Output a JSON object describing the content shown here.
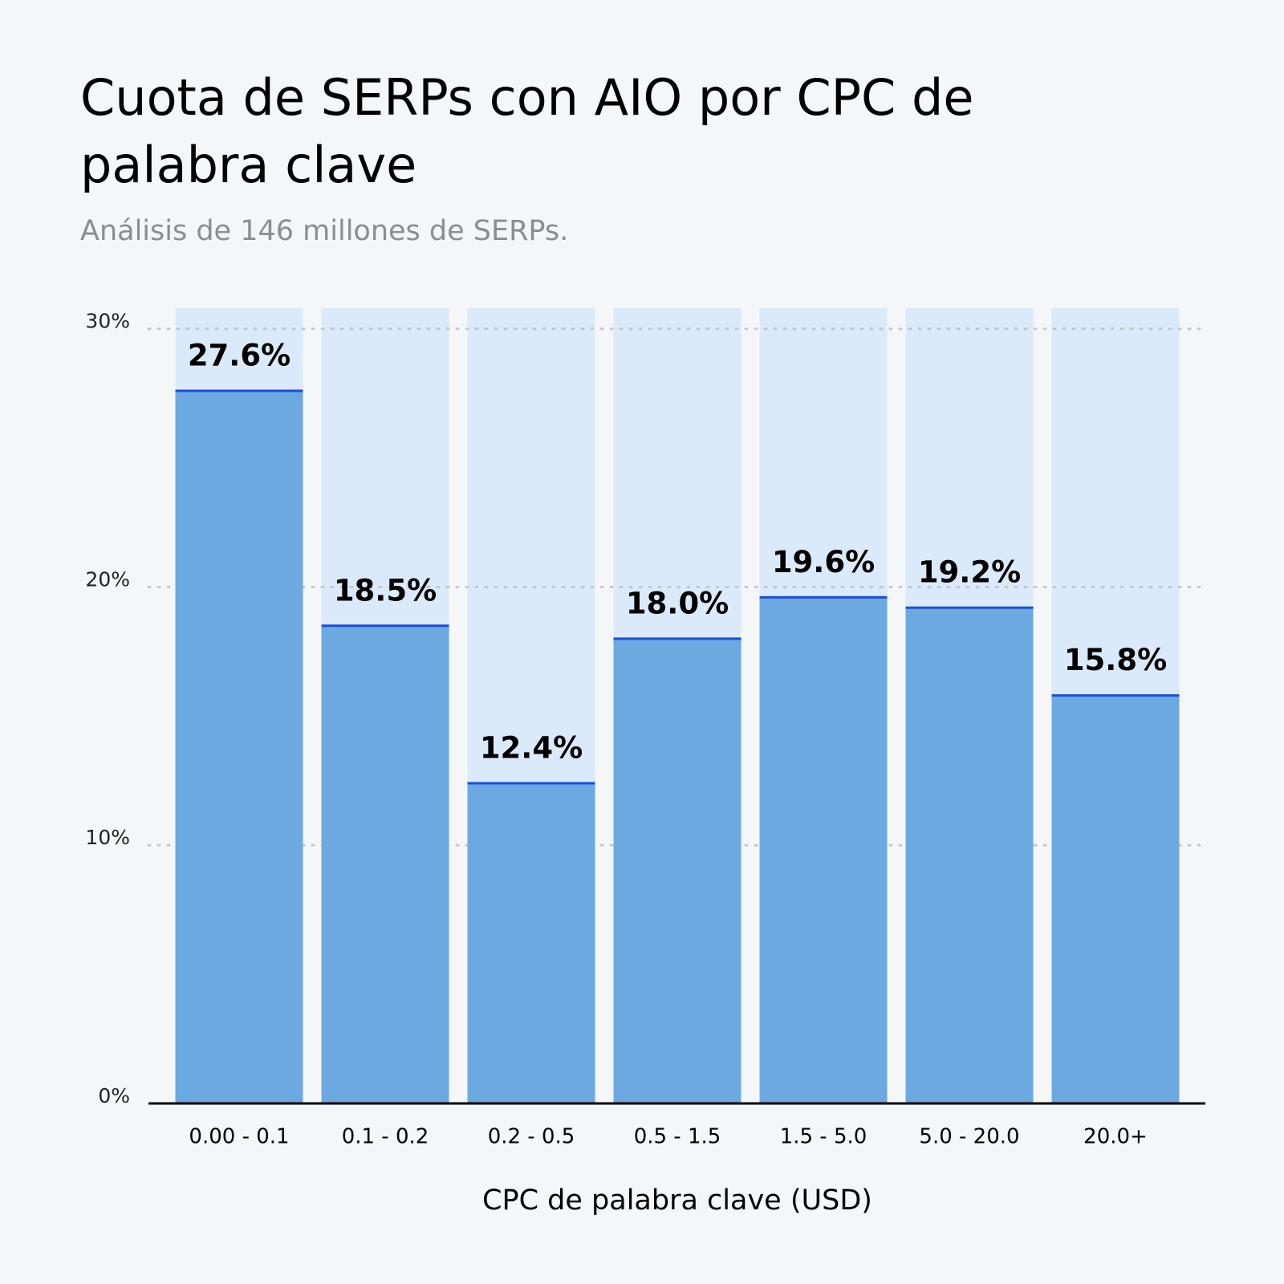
{
  "chart_data": {
    "type": "bar",
    "title": "Cuota de SERPs con AIO por CPC de palabra clave",
    "subtitle": "Análisis de 146 millones de SERPs.",
    "x_label": "CPC de palabra clave (USD)",
    "categories": [
      "0.00 - 0.1",
      "0.1 - 0.2",
      "0.2 - 0.5",
      "0.5 - 1.5",
      "1.5 - 5.0",
      "5.0 - 20.0",
      "20.0+"
    ],
    "values": [
      27.6,
      18.5,
      12.4,
      18.0,
      19.6,
      19.2,
      15.8
    ],
    "value_labels": [
      "27.6%",
      "18.5%",
      "12.4%",
      "18.0%",
      "19.6%",
      "19.2%",
      "15.8%"
    ],
    "color": "#6ca9e0",
    "ylim": [
      0,
      30.8
    ],
    "yticks": [
      {
        "value": 0,
        "label": "0%"
      },
      {
        "value": 10,
        "label": "10%"
      },
      {
        "value": 20,
        "label": "20%"
      },
      {
        "value": 30,
        "label": "30%"
      }
    ],
    "grid": true
  }
}
